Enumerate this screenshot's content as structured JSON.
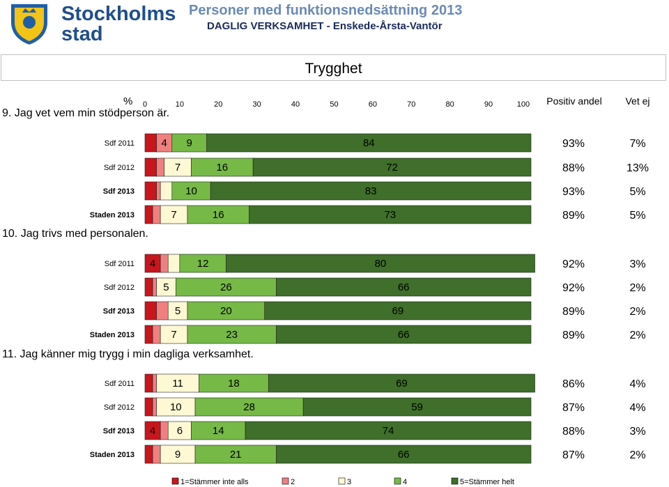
{
  "header": {
    "logo_text": "Stockholms stad",
    "logo_line1": "Stockholms",
    "logo_line2": "stad",
    "title": "Personer med funktionsnedsättning 2013",
    "subtitle": "DAGLIG VERKSAMHET - Enskede-Årsta-Vantör"
  },
  "section_title": "Trygghet",
  "axis": {
    "unit_label": "%",
    "ticks": [
      "0",
      "10",
      "20",
      "30",
      "40",
      "50",
      "60",
      "70",
      "80",
      "90",
      "100"
    ],
    "col_positive": "Positiv andel",
    "col_unknown": "Vet ej"
  },
  "colors": {
    "c1": "#c8161d",
    "c2": "#f08080",
    "c3": "#fef9d4",
    "c4": "#76b947",
    "c5": "#3f6f2a"
  },
  "legend": [
    {
      "label": "1=Stämmer inte alls",
      "color": "#c8161d"
    },
    {
      "label": "2",
      "color": "#f08080"
    },
    {
      "label": "3",
      "color": "#fef9d4"
    },
    {
      "label": "4",
      "color": "#76b947"
    },
    {
      "label": "5=Stämmer helt",
      "color": "#3f6f2a"
    }
  ],
  "chart_data": {
    "type": "bar",
    "stacked": true,
    "orientation": "horizontal",
    "xlim": [
      0,
      100
    ],
    "series_names": [
      "1=Stämmer inte alls",
      "2",
      "3",
      "4",
      "5=Stämmer helt"
    ],
    "questions": [
      {
        "title": "9. Jag vet vem min stödperson är.",
        "rows": [
          {
            "label": "Sdf 2011",
            "bold": false,
            "values": [
              3,
              4,
              0,
              9,
              84
            ],
            "labels": [
              "",
              "4",
              "",
              "9",
              "84"
            ],
            "positive": "93%",
            "unknown": "7%"
          },
          {
            "label": "Sdf 2012",
            "bold": false,
            "values": [
              3,
              2,
              7,
              16,
              72
            ],
            "labels": [
              "",
              "",
              "7",
              "16",
              "72"
            ],
            "positive": "88%",
            "unknown": "13%"
          },
          {
            "label": "Sdf 2013",
            "bold": true,
            "values": [
              3,
              1,
              3,
              10,
              83
            ],
            "labels": [
              "",
              "",
              "",
              "10",
              "83"
            ],
            "positive": "93%",
            "unknown": "5%"
          },
          {
            "label": "Staden 2013",
            "bold": true,
            "values": [
              2,
              2,
              7,
              16,
              73
            ],
            "labels": [
              "",
              "",
              "7",
              "16",
              "73"
            ],
            "positive": "89%",
            "unknown": "5%"
          }
        ]
      },
      {
        "title": "10. Jag trivs med personalen.",
        "rows": [
          {
            "label": "Sdf 2011",
            "bold": false,
            "values": [
              4,
              2,
              3,
              12,
              80
            ],
            "labels": [
              "4",
              "",
              "",
              "12",
              "80"
            ],
            "positive": "92%",
            "unknown": "3%"
          },
          {
            "label": "Sdf 2012",
            "bold": false,
            "values": [
              2,
              1,
              5,
              26,
              66
            ],
            "labels": [
              "",
              "",
              "5",
              "26",
              "66"
            ],
            "positive": "92%",
            "unknown": "2%"
          },
          {
            "label": "Sdf 2013",
            "bold": true,
            "values": [
              3,
              3,
              5,
              20,
              69
            ],
            "labels": [
              "",
              "",
              "5",
              "20",
              "69"
            ],
            "positive": "89%",
            "unknown": "2%"
          },
          {
            "label": "Staden 2013",
            "bold": true,
            "values": [
              2,
              2,
              7,
              23,
              66
            ],
            "labels": [
              "",
              "",
              "7",
              "23",
              "66"
            ],
            "positive": "89%",
            "unknown": "2%"
          }
        ]
      },
      {
        "title": "11. Jag känner mig trygg i min dagliga verksamhet.",
        "rows": [
          {
            "label": "Sdf 2011",
            "bold": false,
            "values": [
              2,
              1,
              11,
              18,
              69
            ],
            "labels": [
              "",
              "",
              "11",
              "18",
              "69"
            ],
            "positive": "86%",
            "unknown": "4%"
          },
          {
            "label": "Sdf 2012",
            "bold": false,
            "values": [
              2,
              1,
              10,
              28,
              59
            ],
            "labels": [
              "",
              "",
              "10",
              "28",
              "59"
            ],
            "positive": "87%",
            "unknown": "4%"
          },
          {
            "label": "Sdf 2013",
            "bold": true,
            "values": [
              4,
              2,
              6,
              14,
              74
            ],
            "labels": [
              "4",
              "",
              "6",
              "14",
              "74"
            ],
            "positive": "88%",
            "unknown": "3%"
          },
          {
            "label": "Staden 2013",
            "bold": true,
            "values": [
              2,
              2,
              9,
              21,
              66
            ],
            "labels": [
              "",
              "",
              "9",
              "21",
              "66"
            ],
            "positive": "87%",
            "unknown": "2%"
          }
        ]
      }
    ]
  }
}
